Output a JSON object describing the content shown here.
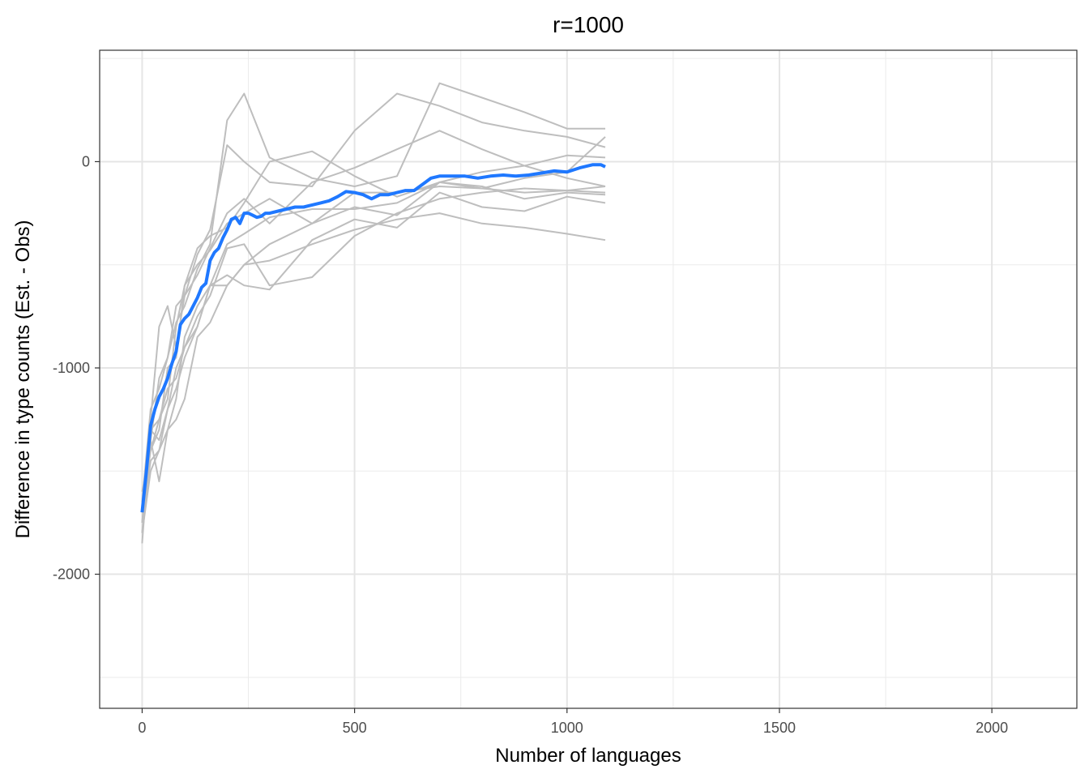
{
  "chart_data": {
    "type": "line",
    "title": "r=1000",
    "xlabel": "Number of languages",
    "ylabel": "Difference in type counts (Est. - Obs)",
    "xlim": [
      -100,
      2200
    ],
    "ylim": [
      -2650,
      540
    ],
    "x_ticks": [
      0,
      500,
      1000,
      1500,
      2000
    ],
    "x_tick_labels": [
      "0",
      "500",
      "1000",
      "1500",
      "2000"
    ],
    "y_ticks": [
      -2000,
      -1000,
      0
    ],
    "y_tick_labels": [
      "-2000",
      "-1000",
      "0"
    ],
    "x_minor": [
      250,
      750,
      1250,
      1750
    ],
    "y_minor": [
      -2500,
      -1500,
      -500,
      500
    ],
    "grid": true,
    "legend": "none",
    "colors": {
      "simulation": "#bebebe",
      "mean": "#1f78ff"
    },
    "series": [
      {
        "role": "simulation",
        "x": [
          0,
          20,
          40,
          60,
          80,
          100,
          130,
          160,
          200,
          240,
          300,
          400,
          500,
          600,
          700,
          800,
          900,
          1000,
          1090
        ],
        "y": [
          -1800,
          -1350,
          -1050,
          -950,
          -780,
          -700,
          -520,
          -400,
          200,
          330,
          20,
          -80,
          -120,
          -70,
          380,
          310,
          240,
          160,
          160
        ]
      },
      {
        "role": "simulation",
        "x": [
          0,
          20,
          40,
          60,
          80,
          100,
          130,
          160,
          200,
          240,
          300,
          400,
          500,
          600,
          700,
          800,
          900,
          1000,
          1090
        ],
        "y": [
          -1750,
          -1250,
          -800,
          -700,
          -900,
          -650,
          -450,
          -330,
          80,
          0,
          -100,
          -120,
          150,
          330,
          270,
          190,
          150,
          120,
          70
        ]
      },
      {
        "role": "simulation",
        "x": [
          0,
          20,
          40,
          60,
          80,
          100,
          130,
          160,
          200,
          240,
          300,
          400,
          500,
          600,
          700,
          800,
          900,
          1000,
          1090
        ],
        "y": [
          -1600,
          -1400,
          -1300,
          -1000,
          -950,
          -600,
          -420,
          -360,
          -320,
          -200,
          0,
          50,
          -70,
          -170,
          -100,
          -50,
          -20,
          30,
          20
        ]
      },
      {
        "role": "simulation",
        "x": [
          0,
          20,
          40,
          60,
          80,
          100,
          130,
          160,
          200,
          240,
          300,
          400,
          500,
          600,
          700,
          800,
          900,
          1000,
          1090
        ],
        "y": [
          -1650,
          -1200,
          -1100,
          -950,
          -700,
          -650,
          -550,
          -420,
          -250,
          -180,
          -300,
          -100,
          -30,
          60,
          150,
          60,
          -20,
          -80,
          -120
        ]
      },
      {
        "role": "simulation",
        "x": [
          0,
          20,
          40,
          60,
          80,
          100,
          130,
          160,
          200,
          240,
          300,
          400,
          500,
          600,
          700,
          800,
          900,
          1000,
          1090
        ],
        "y": [
          -1700,
          -1300,
          -1250,
          -1150,
          -800,
          -600,
          -500,
          -430,
          -300,
          -250,
          -180,
          -300,
          -220,
          -260,
          -100,
          -130,
          -150,
          -140,
          -150
        ]
      },
      {
        "role": "simulation",
        "x": [
          0,
          20,
          40,
          60,
          80,
          100,
          130,
          160,
          200,
          240,
          300,
          400,
          500,
          600,
          700,
          800,
          900,
          1000,
          1090
        ],
        "y": [
          -1800,
          -1500,
          -1400,
          -1200,
          -1000,
          -900,
          -800,
          -600,
          -400,
          -350,
          -270,
          -230,
          -230,
          -200,
          -100,
          -120,
          -180,
          -150,
          -160
        ]
      },
      {
        "role": "simulation",
        "x": [
          0,
          20,
          40,
          60,
          80,
          100,
          130,
          160,
          200,
          240,
          300,
          400,
          500,
          600,
          700,
          800,
          900,
          1000,
          1090
        ],
        "y": [
          -1750,
          -1450,
          -1400,
          -1300,
          -1150,
          -850,
          -700,
          -600,
          -550,
          -600,
          -620,
          -380,
          -280,
          -320,
          -150,
          -220,
          -240,
          -170,
          -200
        ]
      },
      {
        "role": "simulation",
        "x": [
          0,
          20,
          40,
          60,
          80,
          100,
          130,
          160,
          200,
          240,
          300,
          400,
          500,
          600,
          700,
          800,
          900,
          1000,
          1090
        ],
        "y": [
          -1700,
          -1350,
          -1550,
          -1300,
          -1250,
          -1150,
          -850,
          -780,
          -600,
          -500,
          -400,
          -300,
          -150,
          -150,
          -120,
          -130,
          -80,
          -50,
          120
        ]
      },
      {
        "role": "simulation",
        "x": [
          0,
          20,
          40,
          60,
          80,
          100,
          130,
          160,
          200,
          240,
          300,
          400,
          500,
          600,
          700,
          800,
          900,
          1000,
          1090
        ],
        "y": [
          -1850,
          -1300,
          -1350,
          -1200,
          -1100,
          -950,
          -800,
          -600,
          -600,
          -500,
          -480,
          -400,
          -330,
          -280,
          -250,
          -300,
          -320,
          -350,
          -380
        ]
      },
      {
        "role": "simulation",
        "x": [
          0,
          20,
          40,
          60,
          80,
          100,
          130,
          160,
          200,
          240,
          300,
          400,
          500,
          600,
          700,
          800,
          900,
          1000,
          1090
        ],
        "y": [
          -1700,
          -1400,
          -1250,
          -1100,
          -1050,
          -900,
          -750,
          -650,
          -420,
          -400,
          -600,
          -560,
          -360,
          -250,
          -180,
          -150,
          -130,
          -140,
          -120
        ]
      },
      {
        "name": "",
        "role": "mean",
        "x": [
          0,
          10,
          20,
          30,
          40,
          50,
          60,
          70,
          80,
          90,
          100,
          110,
          120,
          130,
          140,
          150,
          160,
          170,
          180,
          190,
          200,
          210,
          220,
          230,
          240,
          250,
          260,
          270,
          280,
          290,
          300,
          320,
          340,
          360,
          380,
          400,
          420,
          440,
          460,
          480,
          500,
          520,
          540,
          560,
          580,
          600,
          620,
          640,
          660,
          680,
          700,
          730,
          760,
          790,
          820,
          850,
          880,
          910,
          940,
          970,
          1000,
          1030,
          1060,
          1080,
          1090
        ],
        "y": [
          -1700,
          -1500,
          -1280,
          -1200,
          -1140,
          -1100,
          -1050,
          -980,
          -920,
          -790,
          -760,
          -740,
          -700,
          -660,
          -610,
          -590,
          -480,
          -440,
          -420,
          -370,
          -330,
          -280,
          -270,
          -300,
          -250,
          -250,
          -260,
          -270,
          -265,
          -250,
          -250,
          -240,
          -230,
          -220,
          -220,
          -210,
          -200,
          -190,
          -170,
          -145,
          -150,
          -160,
          -180,
          -160,
          -160,
          -150,
          -140,
          -140,
          -110,
          -80,
          -70,
          -70,
          -70,
          -80,
          -70,
          -65,
          -70,
          -65,
          -55,
          -45,
          -50,
          -30,
          -15,
          -15,
          -25
        ]
      }
    ]
  }
}
